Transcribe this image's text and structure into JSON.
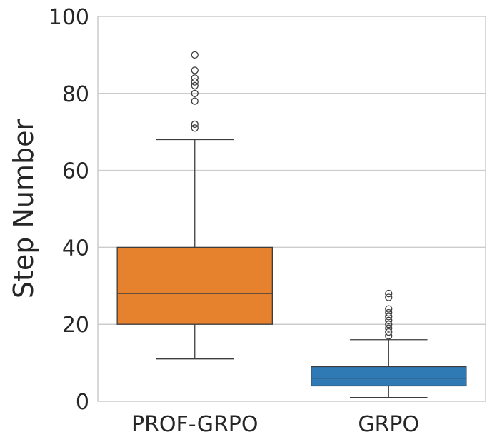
{
  "chart_data": {
    "type": "box",
    "title": "",
    "xlabel": "",
    "ylabel": "Step Number",
    "ylim": [
      0,
      100
    ],
    "yticks": [
      0,
      20,
      40,
      60,
      80,
      100
    ],
    "grid": true,
    "categories": [
      "PROF-GRPO",
      "GRPO"
    ],
    "boxes": [
      {
        "name": "PROF-GRPO",
        "color": "#e6812e",
        "whisker_low": 11,
        "q1": 20,
        "median": 28,
        "q3": 40,
        "whisker_high": 68,
        "outliers": [
          71,
          72,
          78,
          80,
          82,
          83,
          84,
          86,
          90
        ]
      },
      {
        "name": "GRPO",
        "color": "#2f79b5",
        "whisker_low": 1,
        "q1": 4,
        "median": 6,
        "q3": 9,
        "whisker_high": 16,
        "outliers": [
          17,
          18,
          19,
          20,
          21,
          22,
          23,
          24,
          27,
          28
        ]
      }
    ]
  }
}
